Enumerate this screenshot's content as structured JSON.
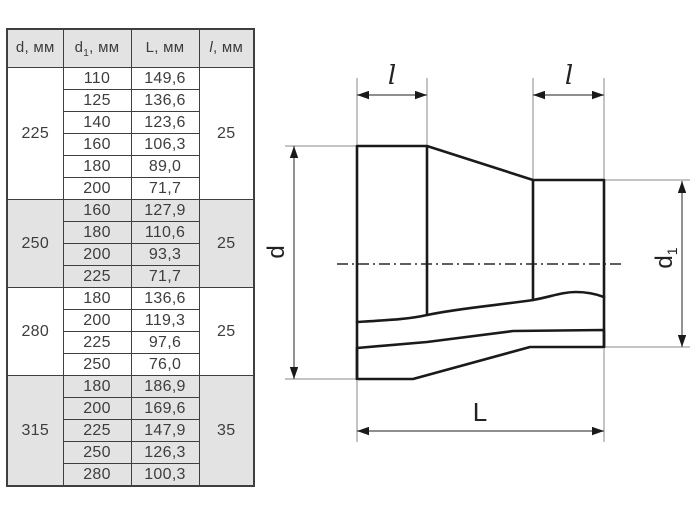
{
  "table": {
    "headers": [
      {
        "base": "d",
        "sub": "",
        "unit": ", мм"
      },
      {
        "base": "d",
        "sub": "1",
        "unit": ", мм"
      },
      {
        "base": "L",
        "sub": "",
        "unit": ", мм"
      },
      {
        "base": "l",
        "sub": "",
        "unit": ", мм"
      }
    ],
    "groups": [
      {
        "d": "225",
        "l": "25",
        "shaded": false,
        "rows": [
          [
            "110",
            "149,6"
          ],
          [
            "125",
            "136,6"
          ],
          [
            "140",
            "123,6"
          ],
          [
            "160",
            "106,3"
          ],
          [
            "180",
            "89,0"
          ],
          [
            "200",
            "71,7"
          ]
        ]
      },
      {
        "d": "250",
        "l": "25",
        "shaded": true,
        "rows": [
          [
            "160",
            "127,9"
          ],
          [
            "180",
            "110,6"
          ],
          [
            "200",
            "93,3"
          ],
          [
            "225",
            "71,7"
          ]
        ]
      },
      {
        "d": "280",
        "l": "25",
        "shaded": false,
        "rows": [
          [
            "180",
            "136,6"
          ],
          [
            "200",
            "119,3"
          ],
          [
            "225",
            "97,6"
          ],
          [
            "250",
            "76,0"
          ]
        ]
      },
      {
        "d": "315",
        "l": "35",
        "shaded": true,
        "rows": [
          [
            "180",
            "186,9"
          ],
          [
            "200",
            "169,6"
          ],
          [
            "225",
            "147,9"
          ],
          [
            "250",
            "126,3"
          ],
          [
            "280",
            "100,3"
          ]
        ]
      }
    ]
  },
  "diagram": {
    "labels": {
      "l_left": "l",
      "l_right": "l",
      "d": "d",
      "d1_base": "d",
      "d1_sub": "1",
      "L": "L"
    }
  },
  "colors": {
    "shade": "#e3e3e3",
    "border": "#3f3f3f",
    "text": "#3d3d3d"
  }
}
